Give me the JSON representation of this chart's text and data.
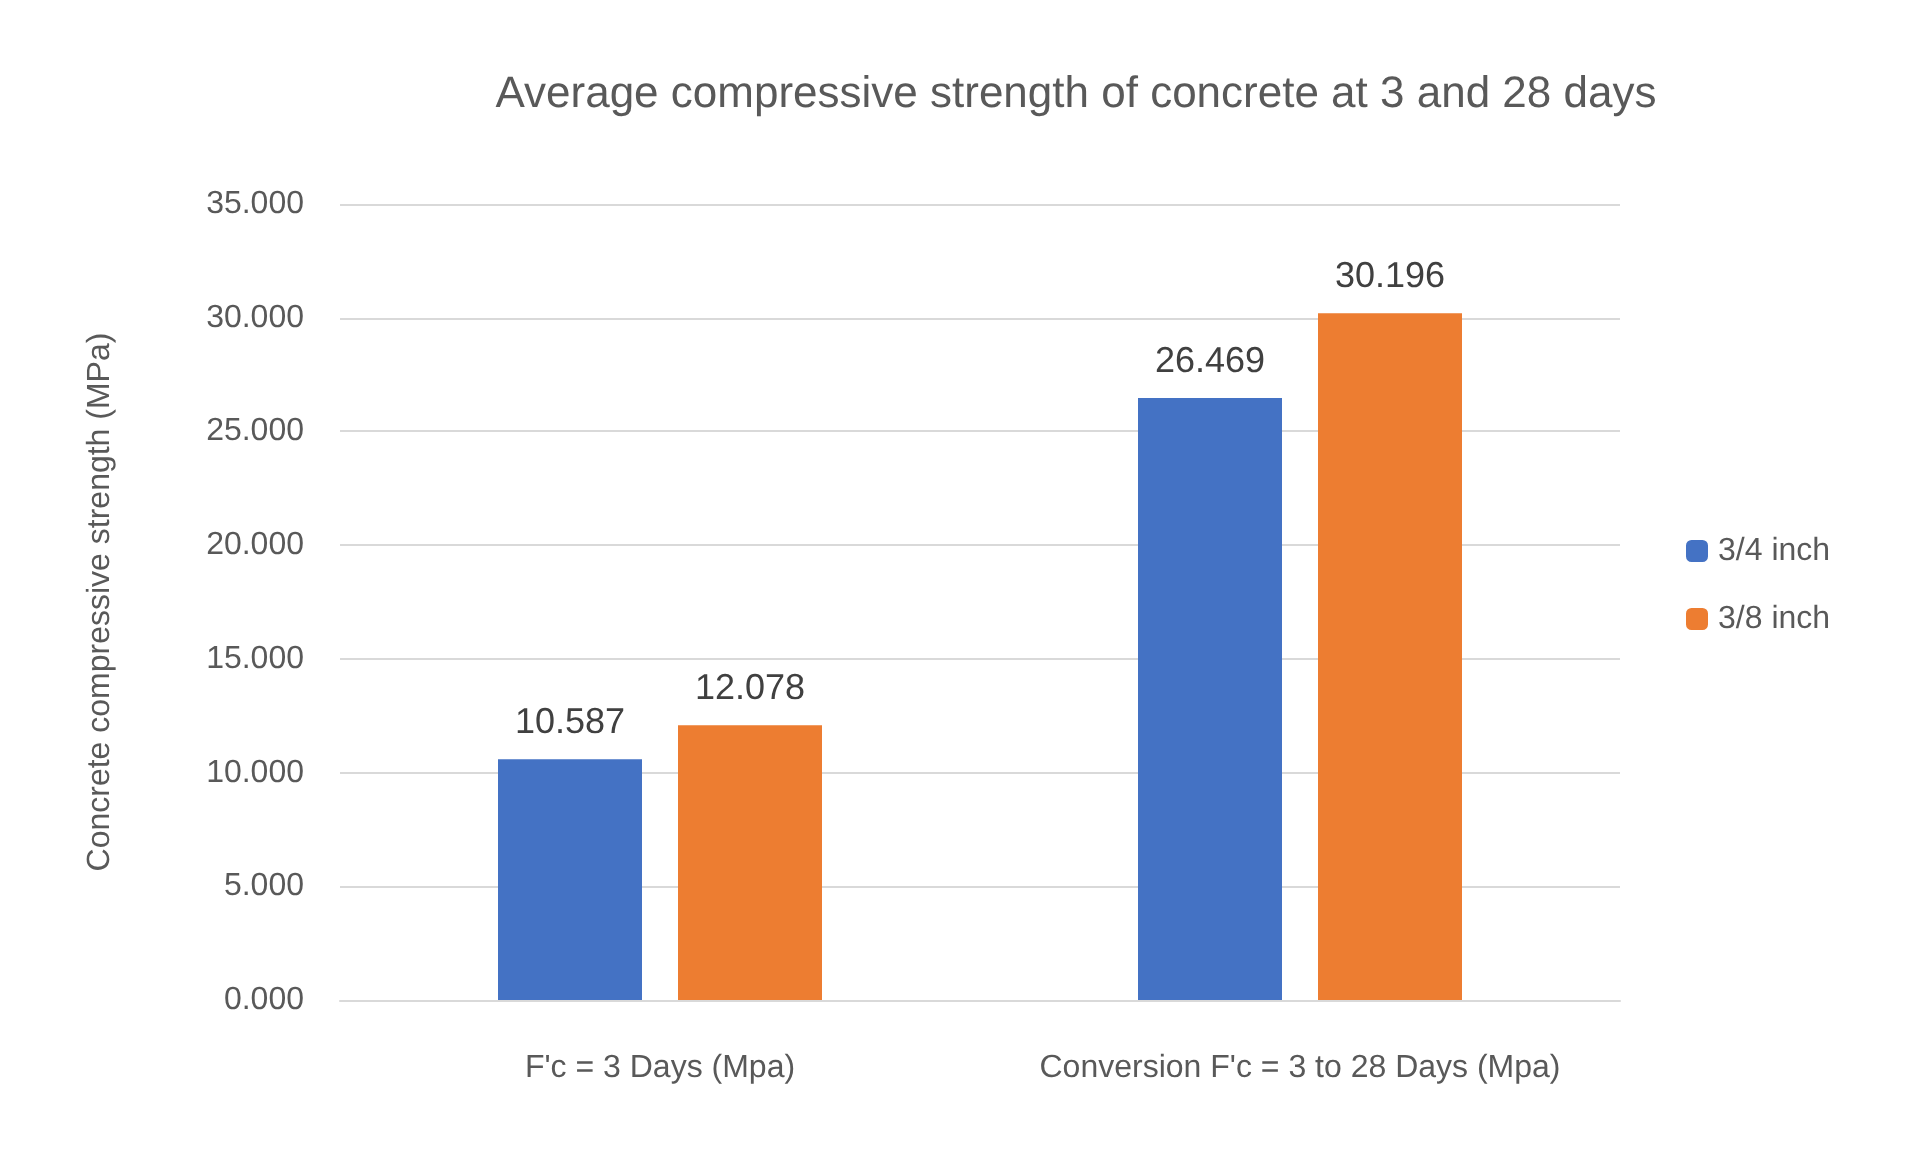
{
  "chart_data": {
    "type": "bar",
    "title": "Average compressive strength of concrete at 3 and 28 days",
    "ylabel": "Concrete compressive strength (MPa)",
    "categories": [
      "F'c = 3 Days (Mpa)",
      "Conversion F'c = 3 to 28 Days (Mpa)"
    ],
    "series": [
      {
        "name": "3/4 inch",
        "color": "#4472c4",
        "values": [
          10.587,
          26.469
        ]
      },
      {
        "name": "3/8 inch",
        "color": "#ed7d31",
        "values": [
          12.078,
          30.196
        ]
      }
    ],
    "ylim": [
      0,
      35
    ],
    "yticks": [
      {
        "value": 0,
        "label": "0.000"
      },
      {
        "value": 5,
        "label": "5.000"
      },
      {
        "value": 10,
        "label": "10.000"
      },
      {
        "value": 15,
        "label": "15.000"
      },
      {
        "value": 20,
        "label": "20.000"
      },
      {
        "value": 25,
        "label": "25.000"
      },
      {
        "value": 30,
        "label": "30.000"
      },
      {
        "value": 35,
        "label": "35.000"
      }
    ],
    "grid": "y",
    "legend": "right",
    "data_labels": true
  }
}
